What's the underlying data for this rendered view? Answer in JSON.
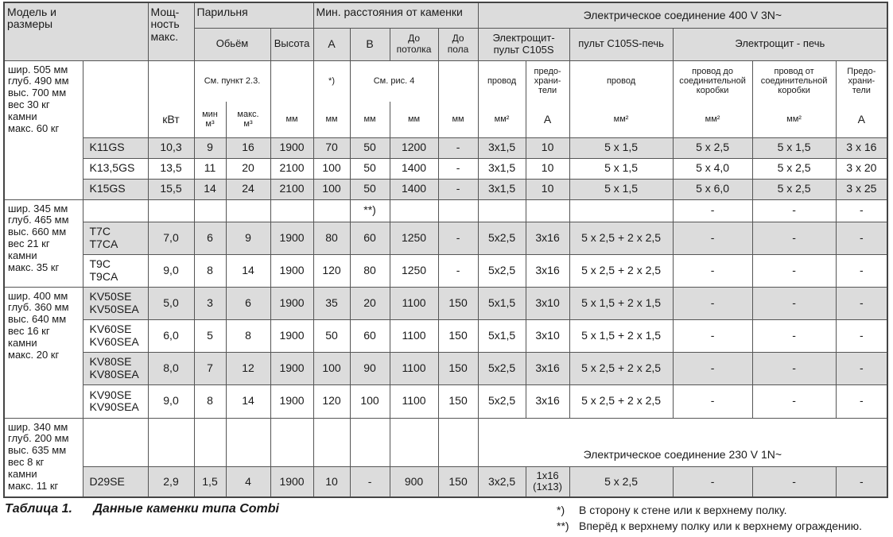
{
  "header": {
    "model": "Модель и\nразмеры",
    "power": "Мощ-\nность\nмакс.",
    "room": "Парильня",
    "distances": "Мин. расстояния от каменки",
    "elec400": "Электрическое соединение 400 V 3N~",
    "volume": "Обьём",
    "height": "Высота",
    "A": "A",
    "B": "B",
    "ceiling": "До\nпотолка",
    "floor": "До\nпола",
    "board_pult": "Электрощит-\nпульт C105S",
    "pult_stove": "пульт C105S-печь",
    "board_stove": "Электрощит - печь",
    "note_room": "См. пункт 2.3.",
    "note_star": "*)",
    "note_fig": "См. рис. 4",
    "wire": "провод",
    "fuses": "предо-\nхрани-\nтели",
    "wire2": "провод",
    "wire_to_box": "провод до\nсоединительной\nкоробки",
    "wire_from_box": "провод от\nсоединительной\nкоробки",
    "fuses2": "Предо-\nхрани-\nтели",
    "units": {
      "kw": "кВт",
      "min": "мин\nм³",
      "max": "макс.\nм³",
      "mm": "мм",
      "mm2": "мм²",
      "amp": "A"
    }
  },
  "groups": [
    {
      "dims": "шир. 505 мм\nглуб. 490 мм\nвыс. 700 мм\nвес 30 кг\nкамни\nмакс. 60 кг",
      "rows": [
        {
          "shaded": true,
          "cells": [
            "K11GS",
            "10,3",
            "9",
            "16",
            "1900",
            "70",
            "50",
            "1200",
            "-",
            "3x1,5",
            "10",
            "5 x 1,5",
            "5 x 2,5",
            "5 x 1,5",
            "3 x 16"
          ]
        },
        {
          "shaded": false,
          "cells": [
            "K13,5GS",
            "13,5",
            "11",
            "20",
            "2100",
            "100",
            "50",
            "1400",
            "-",
            "3x1,5",
            "10",
            "5 x 1,5",
            "5 x 4,0",
            "5 x 2,5",
            "3 x 20"
          ]
        },
        {
          "shaded": true,
          "cells": [
            "K15GS",
            "15,5",
            "14",
            "24",
            "2100",
            "100",
            "50",
            "1400",
            "-",
            "3x1,5",
            "10",
            "5 x 1,5",
            "5 x 6,0",
            "5 x 2,5",
            "3 x 25"
          ]
        }
      ]
    },
    {
      "dims": "шир. 345 мм\nглуб. 465 мм\nвыс. 660 мм\nвес 21 кг\nкамни\nмакс. 35 кг",
      "rows": [
        {
          "shaded": false,
          "cells": [
            "",
            "",
            "",
            "",
            "",
            "",
            "**)",
            "",
            "",
            "",
            "",
            "",
            "-",
            "-",
            "-"
          ]
        },
        {
          "shaded": true,
          "cells": [
            "T7C\nT7CA",
            "7,0",
            "6",
            "9",
            "1900",
            "80",
            "60",
            "1250",
            "-",
            "5x2,5",
            "3x16",
            "5 x 2,5 + 2 x 2,5",
            "-",
            "-",
            "-"
          ]
        },
        {
          "shaded": false,
          "cells": [
            "T9C\nT9CA",
            "9,0",
            "8",
            "14",
            "1900",
            "120",
            "80",
            "1250",
            "-",
            "5x2,5",
            "3x16",
            "5 x 2,5 + 2 x 2,5",
            "-",
            "-",
            "-"
          ]
        }
      ]
    },
    {
      "dims": "шир. 400 мм\nглуб. 360 мм\nвыс. 640 мм\nвес 16 кг\nкамни\nмакс. 20 кг",
      "rows": [
        {
          "shaded": true,
          "cells": [
            "KV50SE\nKV50SEA",
            "5,0",
            "3",
            "6",
            "1900",
            "35",
            "20",
            "1100",
            "150",
            "5x1,5",
            "3x10",
            "5 x 1,5 + 2 x 1,5",
            "-",
            "-",
            "-"
          ]
        },
        {
          "shaded": false,
          "cells": [
            "KV60SE\nKV60SEA",
            "6,0",
            "5",
            "8",
            "1900",
            "50",
            "60",
            "1100",
            "150",
            "5x1,5",
            "3x10",
            "5 x 1,5 + 2 x 1,5",
            "-",
            "-",
            "-"
          ]
        },
        {
          "shaded": true,
          "cells": [
            "KV80SE\nKV80SEA",
            "8,0",
            "7",
            "12",
            "1900",
            "100",
            "90",
            "1100",
            "150",
            "5x2,5",
            "3x16",
            "5 x 2,5 + 2 x 2,5",
            "-",
            "-",
            "-"
          ]
        },
        {
          "shaded": false,
          "cells": [
            "KV90SE\nKV90SEA",
            "9,0",
            "8",
            "14",
            "1900",
            "120",
            "100",
            "1100",
            "150",
            "5x2,5",
            "3x16",
            "5 x 2,5 + 2 x 2,5",
            "-",
            "-",
            "-"
          ]
        }
      ]
    },
    {
      "dims": "шир. 340 мм\nглуб. 200 мм\nвыс. 635 мм\nвес 8 кг\nкамни\nмакс. 11 кг",
      "elec230": "Электрическое соединение 230 V 1N~",
      "rows": [
        {
          "shaded": true,
          "cells": [
            "D29SE",
            "2,9",
            "1,5",
            "4",
            "1900",
            "10",
            "-",
            "900",
            "150",
            "3x2,5",
            "1x16\n(1x13)",
            "5 x 2,5",
            "-",
            "-",
            "-"
          ]
        }
      ]
    }
  ],
  "caption": {
    "number": "Таблица 1.",
    "title": "Данные каменки типа Combi"
  },
  "footnotes": [
    {
      "mark": "*)",
      "text": "В сторону к стене или к верхнему полку."
    },
    {
      "mark": "**)",
      "text": "Вперёд к верхнему полку или к верхнему ограждению."
    }
  ]
}
